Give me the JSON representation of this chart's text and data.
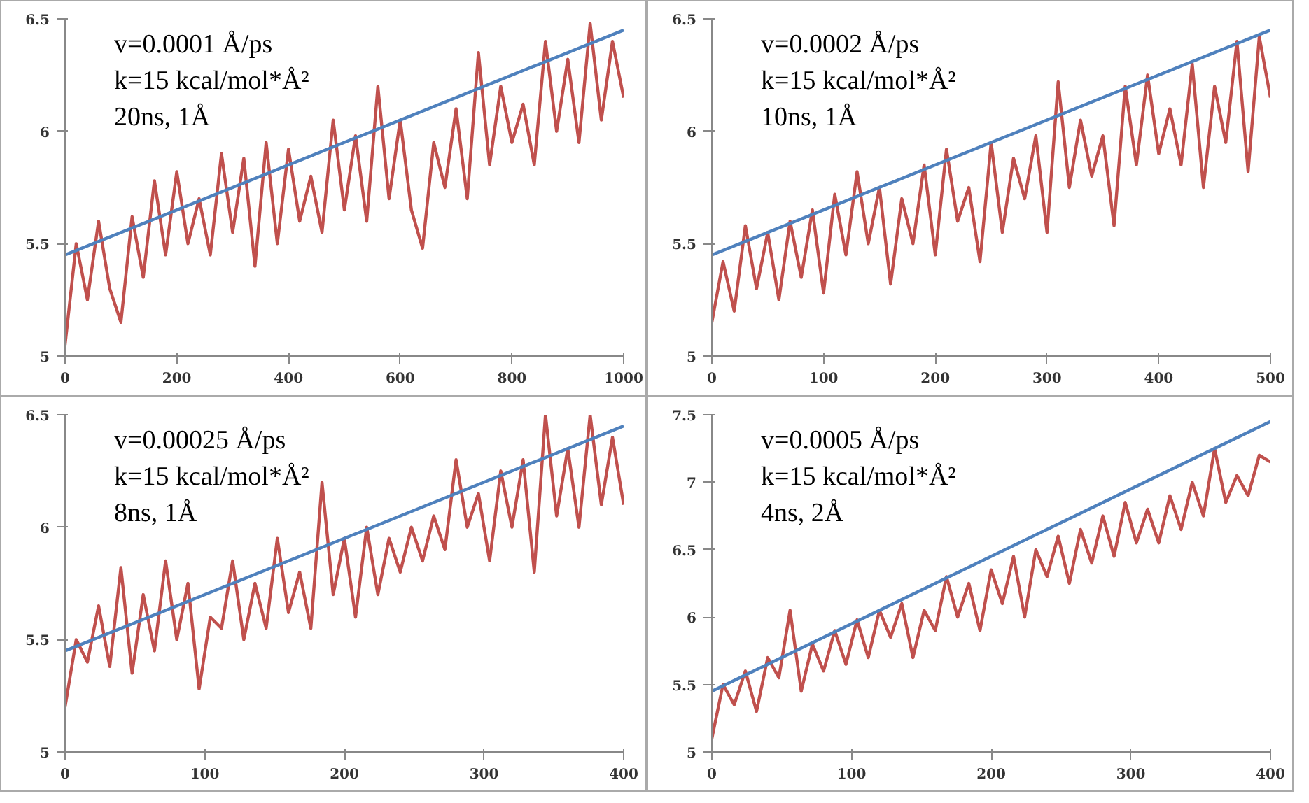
{
  "chart_data": [
    {
      "type": "line",
      "xlim": [
        0,
        1000
      ],
      "ylim": [
        5,
        6.5
      ],
      "xticks": [
        0,
        200,
        400,
        600,
        800,
        1000
      ],
      "yticks": [
        5,
        5.5,
        6,
        6.5
      ],
      "grid": false,
      "annotations": [
        "v=0.0001 Å/ps",
        "k=15 kcal/mol*Å²",
        "20ns, 1Å"
      ],
      "series": [
        {
          "color": "#c0504d",
          "x": [
            0,
            20,
            40,
            60,
            80,
            100,
            120,
            140,
            160,
            180,
            200,
            220,
            240,
            260,
            280,
            300,
            320,
            340,
            360,
            380,
            400,
            420,
            440,
            460,
            480,
            500,
            520,
            540,
            560,
            580,
            600,
            620,
            640,
            660,
            680,
            700,
            720,
            740,
            760,
            780,
            800,
            820,
            840,
            860,
            880,
            900,
            920,
            940,
            960,
            980,
            1000
          ],
          "values": [
            5.05,
            5.5,
            5.25,
            5.6,
            5.3,
            5.15,
            5.62,
            5.35,
            5.78,
            5.45,
            5.82,
            5.5,
            5.7,
            5.45,
            5.9,
            5.55,
            5.88,
            5.4,
            5.95,
            5.5,
            5.92,
            5.6,
            5.8,
            5.55,
            6.05,
            5.65,
            5.98,
            5.6,
            6.2,
            5.7,
            6.05,
            5.65,
            5.48,
            5.95,
            5.75,
            6.1,
            5.7,
            6.35,
            5.85,
            6.2,
            5.95,
            6.12,
            5.85,
            6.4,
            6.0,
            6.32,
            5.95,
            6.48,
            6.05,
            6.4,
            6.15
          ]
        },
        {
          "color": "#4f81bd",
          "x": [
            0,
            1000
          ],
          "values": [
            5.45,
            6.45
          ]
        }
      ]
    },
    {
      "type": "line",
      "xlim": [
        0,
        500
      ],
      "ylim": [
        5,
        6.5
      ],
      "xticks": [
        0,
        100,
        200,
        300,
        400,
        500
      ],
      "yticks": [
        5,
        5.5,
        6,
        6.5
      ],
      "grid": false,
      "annotations": [
        "v=0.0002 Å/ps",
        "k=15 kcal/mol*Å²",
        "10ns, 1Å"
      ],
      "series": [
        {
          "color": "#c0504d",
          "x": [
            0,
            10,
            20,
            30,
            40,
            50,
            60,
            70,
            80,
            90,
            100,
            110,
            120,
            130,
            140,
            150,
            160,
            170,
            180,
            190,
            200,
            210,
            220,
            230,
            240,
            250,
            260,
            270,
            280,
            290,
            300,
            310,
            320,
            330,
            340,
            350,
            360,
            370,
            380,
            390,
            400,
            410,
            420,
            430,
            440,
            450,
            460,
            470,
            480,
            490,
            500
          ],
          "values": [
            5.15,
            5.42,
            5.2,
            5.58,
            5.3,
            5.55,
            5.25,
            5.6,
            5.35,
            5.65,
            5.28,
            5.72,
            5.45,
            5.82,
            5.5,
            5.75,
            5.32,
            5.7,
            5.5,
            5.85,
            5.45,
            5.92,
            5.6,
            5.75,
            5.42,
            5.95,
            5.55,
            5.88,
            5.7,
            5.98,
            5.55,
            6.22,
            5.75,
            6.05,
            5.8,
            5.98,
            5.58,
            6.2,
            5.85,
            6.25,
            5.9,
            6.1,
            5.85,
            6.3,
            5.75,
            6.2,
            5.95,
            6.4,
            5.82,
            6.42,
            6.15
          ]
        },
        {
          "color": "#4f81bd",
          "x": [
            0,
            500
          ],
          "values": [
            5.45,
            6.45
          ]
        }
      ]
    },
    {
      "type": "line",
      "xlim": [
        0,
        400
      ],
      "ylim": [
        5,
        6.5
      ],
      "xticks": [
        0,
        100,
        200,
        300,
        400
      ],
      "yticks": [
        5,
        5.5,
        6,
        6.5
      ],
      "grid": false,
      "annotations": [
        "v=0.00025 Å/ps",
        "k=15 kcal/mol*Å²",
        "8ns, 1Å"
      ],
      "series": [
        {
          "color": "#c0504d",
          "x": [
            0,
            8,
            16,
            24,
            32,
            40,
            48,
            56,
            64,
            72,
            80,
            88,
            96,
            104,
            112,
            120,
            128,
            136,
            144,
            152,
            160,
            168,
            176,
            184,
            192,
            200,
            208,
            216,
            224,
            232,
            240,
            248,
            256,
            264,
            272,
            280,
            288,
            296,
            304,
            312,
            320,
            328,
            336,
            344,
            352,
            360,
            368,
            376,
            384,
            392,
            400
          ],
          "values": [
            5.2,
            5.5,
            5.4,
            5.65,
            5.38,
            5.82,
            5.35,
            5.7,
            5.45,
            5.85,
            5.5,
            5.75,
            5.28,
            5.6,
            5.55,
            5.85,
            5.5,
            5.75,
            5.55,
            5.95,
            5.62,
            5.8,
            5.55,
            6.2,
            5.7,
            5.95,
            5.6,
            6.0,
            5.7,
            5.95,
            5.8,
            6.0,
            5.85,
            6.05,
            5.9,
            6.3,
            6.0,
            6.15,
            5.85,
            6.25,
            6.0,
            6.3,
            5.8,
            6.5,
            6.05,
            6.35,
            6.0,
            6.5,
            6.1,
            6.4,
            6.1
          ]
        },
        {
          "color": "#4f81bd",
          "x": [
            0,
            400
          ],
          "values": [
            5.45,
            6.45
          ]
        }
      ]
    },
    {
      "type": "line",
      "xlim": [
        0,
        400
      ],
      "ylim": [
        5,
        7.5
      ],
      "xticks": [
        0,
        100,
        200,
        300,
        400
      ],
      "yticks": [
        5,
        5.5,
        6,
        6.5,
        7,
        7.5
      ],
      "grid": false,
      "annotations": [
        "v=0.0005 Å/ps",
        "k=15 kcal/mol*Å²",
        "4ns, 2Å"
      ],
      "series": [
        {
          "color": "#c0504d",
          "x": [
            0,
            8,
            16,
            24,
            32,
            40,
            48,
            56,
            64,
            72,
            80,
            88,
            96,
            104,
            112,
            120,
            128,
            136,
            144,
            152,
            160,
            168,
            176,
            184,
            192,
            200,
            208,
            216,
            224,
            232,
            240,
            248,
            256,
            264,
            272,
            280,
            288,
            296,
            304,
            312,
            320,
            328,
            336,
            344,
            352,
            360,
            368,
            376,
            384,
            392,
            400
          ],
          "values": [
            5.1,
            5.5,
            5.35,
            5.6,
            5.3,
            5.7,
            5.55,
            6.05,
            5.45,
            5.8,
            5.6,
            5.9,
            5.65,
            5.98,
            5.7,
            6.05,
            5.85,
            6.1,
            5.7,
            6.05,
            5.9,
            6.3,
            6.0,
            6.25,
            5.9,
            6.35,
            6.1,
            6.45,
            6.0,
            6.5,
            6.3,
            6.6,
            6.25,
            6.65,
            6.4,
            6.75,
            6.45,
            6.85,
            6.55,
            6.8,
            6.55,
            6.9,
            6.65,
            7.0,
            6.75,
            7.25,
            6.85,
            7.05,
            6.9,
            7.2,
            7.15
          ]
        },
        {
          "color": "#4f81bd",
          "x": [
            0,
            400
          ],
          "values": [
            5.45,
            7.45
          ]
        }
      ]
    }
  ]
}
